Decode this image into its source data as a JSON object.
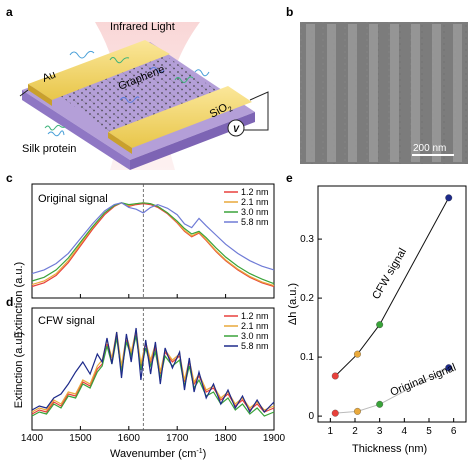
{
  "panels": {
    "a": {
      "letter": "a",
      "labels": {
        "infrared": "Infrared Light",
        "au": "Au",
        "graphene": "Graphene",
        "sio2": "SiO",
        "sio2_sub": "2",
        "silk": "Silk protein",
        "voltage": "V"
      }
    },
    "b": {
      "letter": "b",
      "scalebar": "200 nm",
      "colors": {
        "bg": "#7c7c7c",
        "stripe": "#9a9a9a"
      }
    },
    "c": {
      "letter": "c",
      "title": "Original signal"
    },
    "d": {
      "letter": "d",
      "title": "CFW signal"
    },
    "e": {
      "letter": "e"
    }
  },
  "shared": {
    "xlabel": "Wavenumber (cm",
    "xlabel_sup": "-1",
    "xlabel_close": ")",
    "ylabel_cd": "Extinction (a.u.)",
    "x_ticks": [
      "1400",
      "1500",
      "1600",
      "1700",
      "1800",
      "1900"
    ],
    "legend": [
      {
        "name": "1.2 nm",
        "color": "#e8413c"
      },
      {
        "name": "2.1 nm",
        "color": "#e9a93b"
      },
      {
        "name": "3.0 nm",
        "color": "#3aa33a"
      },
      {
        "name": "5.8 nm",
        "color": "#6f7bd6"
      }
    ],
    "legend_d_colors": [
      "#e8413c",
      "#e9a93b",
      "#3aa33a",
      "#1d2a8a"
    ]
  },
  "chart_data": [
    {
      "panel": "c",
      "type": "line",
      "title": "Original signal",
      "xlabel": "Wavenumber (cm-1)",
      "ylabel": "Extinction (a.u.)",
      "xlim": [
        1400,
        1900
      ],
      "dashed_line_x": 1630,
      "x": [
        1400,
        1425,
        1450,
        1475,
        1500,
        1525,
        1550,
        1570,
        1585,
        1600,
        1615,
        1630,
        1645,
        1660,
        1680,
        1700,
        1715,
        1730,
        1745,
        1760,
        1780,
        1800,
        1825,
        1850,
        1875,
        1900
      ],
      "series": [
        {
          "name": "1.2 nm",
          "values": [
            0.06,
            0.1,
            0.18,
            0.32,
            0.5,
            0.68,
            0.84,
            0.93,
            0.97,
            0.93,
            0.95,
            0.96,
            0.95,
            0.92,
            0.85,
            0.75,
            0.66,
            0.6,
            0.64,
            0.56,
            0.44,
            0.34,
            0.24,
            0.16,
            0.1,
            0.06
          ]
        },
        {
          "name": "2.1 nm",
          "values": [
            0.08,
            0.12,
            0.2,
            0.34,
            0.52,
            0.7,
            0.86,
            0.94,
            0.97,
            0.94,
            0.96,
            0.97,
            0.96,
            0.93,
            0.86,
            0.76,
            0.67,
            0.61,
            0.65,
            0.57,
            0.45,
            0.35,
            0.25,
            0.17,
            0.11,
            0.07
          ]
        },
        {
          "name": "3.0 nm",
          "values": [
            0.12,
            0.16,
            0.24,
            0.37,
            0.54,
            0.71,
            0.86,
            0.94,
            0.97,
            0.95,
            0.96,
            0.97,
            0.96,
            0.93,
            0.86,
            0.77,
            0.69,
            0.63,
            0.66,
            0.59,
            0.48,
            0.38,
            0.28,
            0.2,
            0.14,
            0.09
          ]
        },
        {
          "name": "5.8 nm",
          "values": [
            0.2,
            0.24,
            0.31,
            0.42,
            0.58,
            0.74,
            0.88,
            0.95,
            0.97,
            0.92,
            0.9,
            0.86,
            0.92,
            0.95,
            0.91,
            0.84,
            0.74,
            0.7,
            0.8,
            0.72,
            0.62,
            0.52,
            0.42,
            0.34,
            0.28,
            0.24
          ]
        }
      ]
    },
    {
      "panel": "d",
      "type": "line",
      "title": "CFW signal",
      "xlabel": "Wavenumber (cm-1)",
      "ylabel": "Extinction (a.u.)",
      "xlim": [
        1400,
        1900
      ],
      "dashed_line_x": 1630,
      "x": [
        1400,
        1415,
        1430,
        1445,
        1460,
        1475,
        1490,
        1505,
        1520,
        1535,
        1545,
        1555,
        1565,
        1575,
        1585,
        1595,
        1605,
        1615,
        1625,
        1635,
        1645,
        1655,
        1665,
        1675,
        1690,
        1705,
        1715,
        1725,
        1735,
        1745,
        1760,
        1775,
        1790,
        1805,
        1820,
        1835,
        1850,
        1865,
        1880,
        1900
      ],
      "series": [
        {
          "name": "1.2 nm",
          "values": [
            0.1,
            0.14,
            0.12,
            0.22,
            0.18,
            0.3,
            0.28,
            0.42,
            0.38,
            0.55,
            0.6,
            0.8,
            0.62,
            0.88,
            0.55,
            0.84,
            0.7,
            0.9,
            0.58,
            0.8,
            0.62,
            0.76,
            0.5,
            0.72,
            0.62,
            0.68,
            0.42,
            0.62,
            0.4,
            0.48,
            0.32,
            0.36,
            0.24,
            0.3,
            0.18,
            0.24,
            0.14,
            0.2,
            0.12,
            0.16
          ]
        },
        {
          "name": "2.1 nm",
          "values": [
            0.12,
            0.16,
            0.14,
            0.24,
            0.2,
            0.32,
            0.3,
            0.44,
            0.4,
            0.58,
            0.64,
            0.84,
            0.66,
            0.92,
            0.58,
            0.88,
            0.72,
            0.94,
            0.6,
            0.82,
            0.64,
            0.8,
            0.52,
            0.74,
            0.64,
            0.7,
            0.44,
            0.64,
            0.42,
            0.5,
            0.34,
            0.38,
            0.26,
            0.32,
            0.2,
            0.26,
            0.16,
            0.22,
            0.14,
            0.18
          ]
        },
        {
          "name": "3.0 nm",
          "values": [
            0.08,
            0.12,
            0.1,
            0.2,
            0.16,
            0.28,
            0.26,
            0.4,
            0.36,
            0.52,
            0.58,
            0.78,
            0.6,
            0.86,
            0.52,
            0.82,
            0.68,
            0.88,
            0.54,
            0.76,
            0.58,
            0.72,
            0.46,
            0.68,
            0.58,
            0.64,
            0.38,
            0.58,
            0.36,
            0.44,
            0.28,
            0.32,
            0.2,
            0.26,
            0.14,
            0.2,
            0.1,
            0.16,
            0.08,
            0.12
          ]
        },
        {
          "name": "5.8 nm",
          "values": [
            0.14,
            0.18,
            0.16,
            0.26,
            0.3,
            0.4,
            0.52,
            0.62,
            0.5,
            0.7,
            0.62,
            0.86,
            0.6,
            0.92,
            0.46,
            0.9,
            0.62,
            0.96,
            0.44,
            0.84,
            0.5,
            0.82,
            0.4,
            0.76,
            0.56,
            0.72,
            0.34,
            0.66,
            0.32,
            0.52,
            0.26,
            0.4,
            0.2,
            0.34,
            0.16,
            0.28,
            0.12,
            0.24,
            0.12,
            0.22
          ]
        }
      ]
    },
    {
      "panel": "e",
      "type": "scatter",
      "xlabel": "Thickness (nm)",
      "ylabel": "Δh (a.u.)",
      "xlim": [
        0.5,
        6.5
      ],
      "ylim": [
        -0.01,
        0.39
      ],
      "x_ticks": [
        1,
        2,
        3,
        4,
        5,
        6
      ],
      "y_ticks": [
        0,
        0.1,
        0.2,
        0.3
      ],
      "y_tick_labels": [
        "0",
        "0.1",
        "0.2",
        "0.3"
      ],
      "point_colors": [
        "#e8413c",
        "#e9a93b",
        "#3aa33a",
        "#1d2a8a"
      ],
      "series": [
        {
          "name": "CFW signal",
          "line_color": "#111111",
          "x": [
            1.2,
            2.1,
            3.0,
            5.8
          ],
          "y": [
            0.068,
            0.105,
            0.155,
            0.37
          ]
        },
        {
          "name": "Original signal",
          "line_color": "#bbbbbb",
          "x": [
            1.2,
            2.1,
            3.0,
            5.8
          ],
          "y": [
            0.005,
            0.008,
            0.02,
            0.082
          ]
        }
      ]
    }
  ]
}
